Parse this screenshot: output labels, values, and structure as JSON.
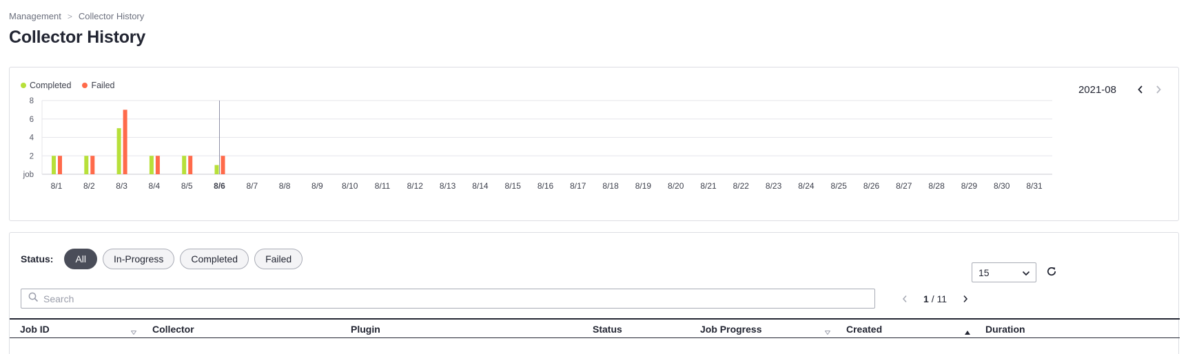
{
  "breadcrumb": {
    "items": [
      "Management",
      "Collector History"
    ],
    "separator": ">"
  },
  "page_title": "Collector History",
  "colors": {
    "completed": "#b7e03a",
    "failed": "#ff6a4a",
    "accent": "#4a4d59",
    "grid": "#e5e6ea",
    "cursor": "#8e8fa6"
  },
  "chart": {
    "legend": [
      {
        "label": "Completed",
        "color": "#b7e03a"
      },
      {
        "label": "Failed",
        "color": "#ff6a4a"
      }
    ],
    "month_label": "2021-08",
    "prev_icon": "chevron-left-icon",
    "next_icon": "chevron-right-icon"
  },
  "chart_data": {
    "type": "bar",
    "categories": [
      "8/1",
      "8/2",
      "8/3",
      "8/4",
      "8/5",
      "8/6",
      "8/7",
      "8/8",
      "8/9",
      "8/10",
      "8/11",
      "8/12",
      "8/13",
      "8/14",
      "8/15",
      "8/16",
      "8/17",
      "8/18",
      "8/19",
      "8/20",
      "8/21",
      "8/22",
      "8/23",
      "8/24",
      "8/25",
      "8/26",
      "8/27",
      "8/28",
      "8/29",
      "8/30",
      "8/31"
    ],
    "series": [
      {
        "name": "Completed",
        "values": [
          2,
          2,
          5,
          2,
          2,
          1,
          0,
          0,
          0,
          0,
          0,
          0,
          0,
          0,
          0,
          0,
          0,
          0,
          0,
          0,
          0,
          0,
          0,
          0,
          0,
          0,
          0,
          0,
          0,
          0,
          0
        ]
      },
      {
        "name": "Failed",
        "values": [
          2,
          2,
          7,
          2,
          2,
          2,
          0,
          0,
          0,
          0,
          0,
          0,
          0,
          0,
          0,
          0,
          0,
          0,
          0,
          0,
          0,
          0,
          0,
          0,
          0,
          0,
          0,
          0,
          0,
          0,
          0
        ]
      }
    ],
    "ylabel": "job",
    "yticks": [
      2,
      4,
      6,
      8
    ],
    "ylim": [
      0,
      8
    ],
    "grid": true,
    "legend_position": "top-left",
    "highlighted_category": "8/6"
  },
  "filters": {
    "label": "Status:",
    "options": [
      {
        "label": "All",
        "active": true
      },
      {
        "label": "In-Progress",
        "active": false
      },
      {
        "label": "Completed",
        "active": false
      },
      {
        "label": "Failed",
        "active": false
      }
    ]
  },
  "search": {
    "placeholder": "Search",
    "value": "",
    "icon": "search-icon"
  },
  "pagination": {
    "current": "1",
    "separator": "/",
    "total": "11"
  },
  "page_size": {
    "value": "15",
    "icon": "chevron-down-icon"
  },
  "refresh_icon": "refresh-icon",
  "table": {
    "columns": [
      {
        "label": "Job ID",
        "sort_icon": "caret-down-icon"
      },
      {
        "label": "Collector"
      },
      {
        "label": "Plugin"
      },
      {
        "label": "Status"
      },
      {
        "label": "Job Progress",
        "sort_icon": "caret-down-icon"
      },
      {
        "label": "Created",
        "sort_icon": "caret-up-icon"
      },
      {
        "label": "Duration"
      }
    ]
  }
}
